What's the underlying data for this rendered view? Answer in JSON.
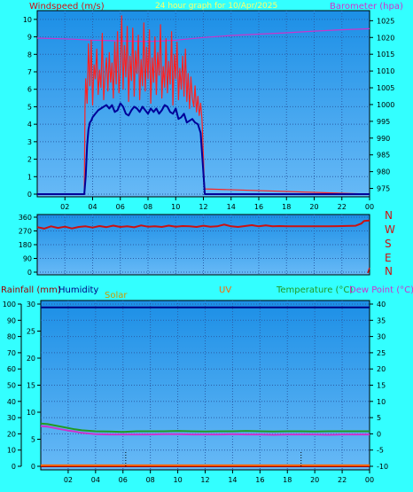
{
  "colors": {
    "background": "#33ffff",
    "plot_top": "#1c8fe6",
    "plot_bottom": "#67b9f6",
    "grid": "#2a5fa8",
    "tick_label": "#000000",
    "wind_gust": "#ff2222",
    "wind_avg": "#000099",
    "barometer": "#cc33cc",
    "direction": "#cc1111",
    "rain": "#990000",
    "solar": "#cc9900",
    "uv": "#ff6600",
    "temperature": "#229922",
    "dewpoint": "#cc33cc",
    "humidity": "#000080",
    "title_text": "#ffff66"
  },
  "chart_data": [
    {
      "id": "wind",
      "type": "line",
      "title": "24 hour graph for  10/Apr/2025",
      "left_label": "Windspeed (m/s)",
      "right_label": "Barometer (hpa)",
      "x_ticks": [
        "02",
        "04",
        "06",
        "08",
        "10",
        "12",
        "14",
        "16",
        "18",
        "20",
        "22",
        "00"
      ],
      "x_range": [
        0,
        24
      ],
      "y_left": {
        "range": [
          0,
          10.5
        ],
        "ticks": [
          0,
          1,
          2,
          3,
          4,
          5,
          6,
          7,
          8,
          9,
          10
        ]
      },
      "y_right": {
        "range": [
          972.5,
          1028
        ],
        "ticks": [
          975,
          980,
          985,
          990,
          995,
          1000,
          1005,
          1010,
          1015,
          1020,
          1025
        ]
      },
      "series": [
        {
          "key": "gust",
          "axis": "left",
          "color_key": "wind_gust",
          "x": [
            0,
            3.4,
            3.45,
            3.5,
            3.6,
            3.7,
            3.8,
            3.9,
            4.0,
            4.1,
            4.2,
            4.3,
            4.4,
            4.5,
            4.6,
            4.7,
            4.8,
            4.9,
            5.0,
            5.1,
            5.2,
            5.3,
            5.4,
            5.5,
            5.6,
            5.7,
            5.8,
            5.9,
            6.0,
            6.1,
            6.2,
            6.3,
            6.4,
            6.5,
            6.6,
            6.7,
            6.8,
            6.9,
            7.0,
            7.1,
            7.2,
            7.3,
            7.4,
            7.5,
            7.6,
            7.7,
            7.8,
            7.9,
            8.0,
            8.1,
            8.2,
            8.3,
            8.4,
            8.5,
            8.6,
            8.7,
            8.8,
            8.9,
            9.0,
            9.1,
            9.2,
            9.3,
            9.4,
            9.5,
            9.6,
            9.7,
            9.8,
            9.9,
            10.0,
            10.1,
            10.2,
            10.3,
            10.4,
            10.5,
            10.6,
            10.7,
            10.8,
            10.9,
            11.0,
            11.1,
            11.2,
            11.3,
            11.4,
            11.5,
            11.6,
            11.7,
            11.8,
            11.9,
            12.0,
            12.05,
            12.1,
            24
          ],
          "y": [
            0,
            0,
            5.0,
            6.6,
            5.2,
            8.6,
            6.2,
            8.8,
            5.1,
            7.4,
            6.6,
            8.3,
            5.7,
            7.1,
            6.1,
            9.2,
            5.4,
            6.8,
            7.8,
            5.9,
            8.1,
            6.4,
            7.5,
            5.5,
            8.7,
            6.3,
            9.3,
            5.8,
            7.1,
            10.2,
            6.0,
            8.5,
            6.7,
            9.6,
            5.3,
            7.9,
            6.5,
            9.5,
            5.6,
            8.2,
            6.9,
            9.1,
            5.4,
            7.7,
            6.2,
            9.8,
            5.9,
            8.4,
            6.6,
            9.4,
            5.2,
            7.8,
            6.4,
            9.0,
            5.7,
            8.1,
            6.8,
            9.7,
            5.5,
            7.3,
            6.1,
            8.9,
            5.8,
            7.6,
            6.3,
            9.3,
            5.1,
            8.0,
            6.6,
            8.7,
            5.4,
            7.2,
            6.0,
            7.9,
            5.6,
            8.3,
            5.3,
            6.9,
            4.9,
            6.7,
            5.5,
            5.0,
            6.2,
            4.7,
            5.6,
            4.5,
            5.2,
            4.3,
            2.2,
            0.8,
            0.3,
            0
          ]
        },
        {
          "key": "average",
          "axis": "left",
          "color_key": "wind_avg",
          "x": [
            0,
            3.4,
            3.5,
            3.6,
            3.7,
            3.8,
            3.9,
            4.0,
            4.2,
            4.4,
            4.6,
            4.8,
            5.0,
            5.2,
            5.4,
            5.6,
            5.8,
            6.0,
            6.2,
            6.4,
            6.6,
            6.8,
            7.0,
            7.2,
            7.4,
            7.6,
            7.8,
            8.0,
            8.2,
            8.4,
            8.6,
            8.8,
            9.0,
            9.2,
            9.4,
            9.6,
            9.8,
            10.0,
            10.2,
            10.4,
            10.6,
            10.8,
            11.0,
            11.2,
            11.4,
            11.6,
            11.8,
            12.0,
            12.1,
            24
          ],
          "y": [
            0,
            0,
            1.0,
            2.8,
            3.7,
            4.1,
            4.2,
            4.4,
            4.6,
            4.8,
            4.9,
            5.0,
            5.1,
            4.9,
            5.1,
            4.7,
            4.8,
            5.2,
            5.0,
            4.6,
            4.5,
            4.8,
            5.0,
            4.9,
            4.7,
            5.0,
            4.8,
            4.6,
            4.9,
            4.7,
            4.9,
            4.6,
            4.8,
            5.1,
            5.0,
            4.7,
            4.6,
            4.9,
            4.3,
            4.4,
            4.6,
            4.1,
            4.2,
            4.3,
            4.1,
            4.0,
            3.5,
            1.2,
            0,
            0
          ]
        },
        {
          "key": "pressure",
          "axis": "right",
          "color_key": "barometer",
          "x": [
            0,
            2,
            4,
            6,
            8,
            9,
            10,
            12,
            14,
            16,
            18,
            20,
            22,
            24
          ],
          "y": [
            1019.8,
            1019.6,
            1019.2,
            1019.0,
            1018.8,
            1019.0,
            1019.2,
            1020.0,
            1020.6,
            1021.0,
            1021.4,
            1021.9,
            1022.3,
            1022.6
          ]
        }
      ]
    },
    {
      "id": "direction",
      "type": "line",
      "y_left": {
        "range": [
          0,
          360
        ],
        "ticks": [
          0,
          90,
          180,
          270,
          360
        ],
        "tick_labels": [
          "0",
          "90",
          "180",
          "270",
          "360"
        ]
      },
      "y_right_labels": [
        "N",
        "W",
        "S",
        "E",
        "N"
      ],
      "x_range": [
        0,
        24
      ],
      "series": [
        {
          "key": "direction",
          "axis": "left",
          "color_key": "direction",
          "x": [
            0,
            0.5,
            1,
            1.5,
            2,
            2.5,
            3,
            3.5,
            4,
            4.5,
            5,
            5.5,
            6,
            6.5,
            7,
            7.5,
            8,
            8.5,
            9,
            9.5,
            10,
            10.5,
            11,
            11.5,
            12,
            12.5,
            13,
            13.5,
            14,
            14.5,
            15,
            15.5,
            16,
            16.5,
            17,
            17.5,
            18,
            18.5,
            19,
            20,
            21,
            22,
            23,
            23.4,
            23.6,
            24
          ],
          "y": [
            295,
            285,
            300,
            290,
            298,
            286,
            296,
            300,
            292,
            302,
            295,
            305,
            296,
            300,
            294,
            306,
            298,
            300,
            296,
            305,
            298,
            302,
            300,
            296,
            304,
            298,
            300,
            312,
            300,
            296,
            302,
            308,
            300,
            306,
            300,
            302,
            300,
            300,
            300,
            300,
            300,
            302,
            304,
            318,
            335,
            338
          ]
        }
      ]
    },
    {
      "id": "climate",
      "type": "line",
      "labels": {
        "rainfall": "Rainfall (mm)",
        "humidity": "Humidity",
        "solar": "Solar",
        "uv": "UV",
        "temperature": "Temperature (°C)",
        "dewpoint": "Dew Point (°C)"
      },
      "x_ticks": [
        "02",
        "04",
        "06",
        "08",
        "10",
        "12",
        "14",
        "16",
        "18",
        "20",
        "22",
        "00"
      ],
      "x_range": [
        0,
        24
      ],
      "y_humidity": {
        "range": [
          0,
          100
        ],
        "ticks": [
          0,
          10,
          20,
          30,
          40,
          50,
          60,
          70,
          80,
          90,
          100
        ]
      },
      "y_rain": {
        "range": [
          0,
          30
        ],
        "ticks": [
          0,
          5,
          10,
          15,
          20,
          25,
          30
        ]
      },
      "y_temp": {
        "range": [
          -10,
          40
        ],
        "ticks": [
          -10,
          -5,
          0,
          5,
          10,
          15,
          20,
          25,
          30,
          35,
          40
        ]
      },
      "series": [
        {
          "key": "humidity",
          "axis": "humidity",
          "color_key": "humidity",
          "x": [
            0,
            24
          ],
          "y": [
            98,
            98
          ]
        },
        {
          "key": "temperature",
          "axis": "temp",
          "color_key": "temperature",
          "x": [
            0,
            0.5,
            1,
            1.5,
            2,
            2.5,
            3,
            4,
            5,
            6,
            7,
            8,
            9,
            10,
            11,
            12,
            13,
            14,
            15,
            16,
            17,
            18,
            19,
            20,
            21,
            22,
            23,
            24
          ],
          "y": [
            3.2,
            3.0,
            2.6,
            2.2,
            1.8,
            1.4,
            1.1,
            0.8,
            0.7,
            0.6,
            0.8,
            0.8,
            0.8,
            0.9,
            0.8,
            0.7,
            0.8,
            0.8,
            0.9,
            0.8,
            0.7,
            0.8,
            0.8,
            0.7,
            0.8,
            0.8,
            0.8,
            0.8
          ]
        },
        {
          "key": "dewpoint",
          "axis": "temp",
          "color_key": "dewpoint",
          "x": [
            0,
            0.5,
            1,
            1.5,
            2,
            2.5,
            3,
            4,
            5,
            6,
            7,
            8,
            9,
            10,
            11,
            12,
            13,
            14,
            15,
            16,
            17,
            18,
            19,
            20,
            21,
            22,
            23,
            24
          ],
          "y": [
            2.4,
            2.2,
            1.8,
            1.4,
            1.0,
            0.7,
            0.3,
            -0.1,
            -0.2,
            -0.2,
            -0.2,
            -0.2,
            -0.1,
            -0.1,
            -0.2,
            -0.2,
            -0.2,
            -0.1,
            -0.2,
            -0.2,
            -0.3,
            -0.2,
            -0.2,
            -0.2,
            -0.3,
            -0.2,
            -0.2,
            -0.2
          ]
        },
        {
          "key": "solar",
          "axis": "humidity",
          "color_key": "solar",
          "x": [
            0,
            24
          ],
          "y": [
            0.3,
            0.3
          ]
        },
        {
          "key": "rain",
          "axis": "rain",
          "color_key": "rain",
          "x": [
            0,
            24
          ],
          "y": [
            0,
            0
          ]
        },
        {
          "key": "uv",
          "axis": "humidity",
          "color_key": "uv",
          "x": [
            0,
            24
          ],
          "y": [
            0.6,
            0.6
          ]
        }
      ],
      "markers": {
        "sunrise": 6.2,
        "sunset": 19.0
      }
    }
  ]
}
